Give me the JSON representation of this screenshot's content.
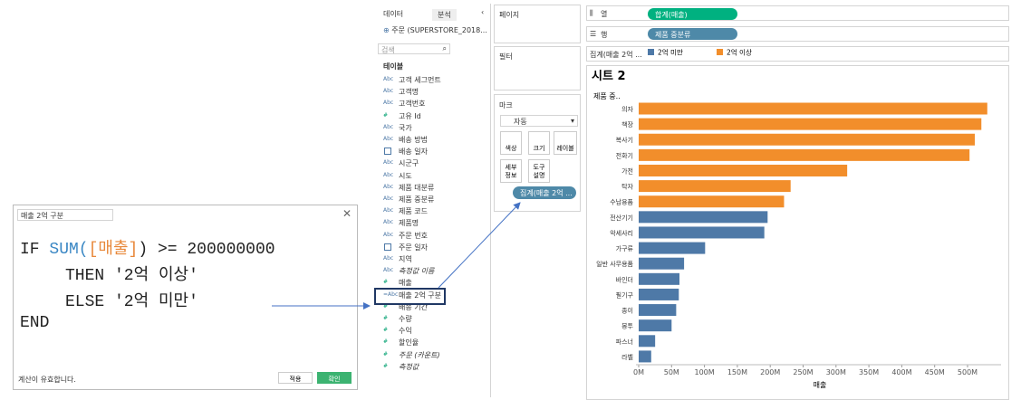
{
  "dialog": {
    "title_field": "매출 2억 구분",
    "code": [
      [
        "IF ",
        "SUM(",
        "[매출]",
        ") >= 200000000"
      ],
      [
        "THEN '2억 이상'"
      ],
      [
        "ELSE '2억 미만'"
      ],
      [
        "END"
      ]
    ],
    "status": "계산이 유효합니다.",
    "buttons": [
      "적용",
      "확인"
    ]
  },
  "data_pane": {
    "tabs": [
      "데이터",
      "분석"
    ],
    "source": "주문 (SUPERSTORE_2018...",
    "search": "검색",
    "section": "테이블",
    "fields": [
      {
        "icon": "Abc",
        "name": "고객 세그먼트"
      },
      {
        "icon": "Abc",
        "name": "고객명"
      },
      {
        "icon": "Abc",
        "name": "고객번호"
      },
      {
        "icon": "#",
        "name": "고유 Id"
      },
      {
        "icon": "Abc",
        "name": "국가"
      },
      {
        "icon": "Abc",
        "name": "배송 방법"
      },
      {
        "name": "배송 일자"
      },
      {
        "icon": "Abc",
        "name": "시군구"
      },
      {
        "icon": "Abc",
        "name": "시도"
      },
      {
        "icon": "Abc",
        "name": "제품 대분류"
      },
      {
        "icon": "Abc",
        "name": "제품 중분류"
      },
      {
        "icon": "Abc",
        "name": "제품 코드"
      },
      {
        "icon": "Abc",
        "name": "제품명"
      },
      {
        "icon": "Abc",
        "name": "주문 번호"
      },
      {
        "name": "주문 일자"
      },
      {
        "icon": "Abc",
        "name": "지역"
      },
      {
        "icon": "Abc",
        "name": "측정값 이름"
      },
      {
        "icon": "#",
        "name": "매출"
      },
      {
        "icon": "=Abc",
        "name": "매출 2억 구분"
      },
      {
        "icon": "#",
        "name": "배송 기간"
      },
      {
        "icon": "#",
        "name": "수량"
      },
      {
        "icon": "#",
        "name": "수익"
      },
      {
        "icon": "#",
        "name": "할인율"
      },
      {
        "icon": "#",
        "name": "주문 (카운트)"
      },
      {
        "icon": "#",
        "name": "측정값"
      }
    ]
  },
  "cards": {
    "pages": "페이지",
    "filters": "필터",
    "marks": "마크",
    "mark_type": "자동",
    "buttons": [
      "색상",
      "크기",
      "레이블",
      "세부 정보",
      "도구 설명"
    ],
    "pill": "집계(매출 2억 ..."
  },
  "shelves": {
    "columns_label": "열",
    "columns_pill": "합계(매출)",
    "rows_label": "행",
    "rows_pill": "제품 중분류",
    "legend_title": "집계(매출 2억 ..."
  },
  "chart_data": {
    "type": "bar",
    "orientation": "horizontal",
    "title": "시트 2",
    "y_header": "제품 중..",
    "x_label": "매출",
    "categories": [
      "의자",
      "책장",
      "복사기",
      "전화기",
      "가전",
      "탁자",
      "수납용품",
      "전산기기",
      "악세사리",
      "가구류",
      "일반 사무용품",
      "바인더",
      "필기구",
      "종이",
      "봉투",
      "파스너",
      "라벨"
    ],
    "series": [
      {
        "name": "2억 미만",
        "color": "#4e79a7",
        "values": [
          null,
          null,
          null,
          null,
          null,
          null,
          null,
          196,
          191,
          101,
          69,
          62,
          61,
          57,
          50,
          25,
          19
        ]
      },
      {
        "name": "2억 이상",
        "color": "#f28e2b",
        "values": [
          530,
          521,
          511,
          503,
          317,
          231,
          221,
          null,
          null,
          null,
          null,
          null,
          null,
          null,
          null,
          null,
          null
        ]
      }
    ],
    "xlim": [
      0,
      550
    ],
    "xticks": [
      {
        "value": 0,
        "label": "0M"
      },
      {
        "value": 50,
        "label": "50M"
      },
      {
        "value": 100,
        "label": "100M"
      },
      {
        "value": 150,
        "label": "150M"
      },
      {
        "value": 200,
        "label": "200M"
      },
      {
        "value": 250,
        "label": "250M"
      },
      {
        "value": 300,
        "label": "300M"
      },
      {
        "value": 350,
        "label": "350M"
      },
      {
        "value": 400,
        "label": "400M"
      },
      {
        "value": 450,
        "label": "450M"
      },
      {
        "value": 500,
        "label": "500M"
      }
    ]
  }
}
